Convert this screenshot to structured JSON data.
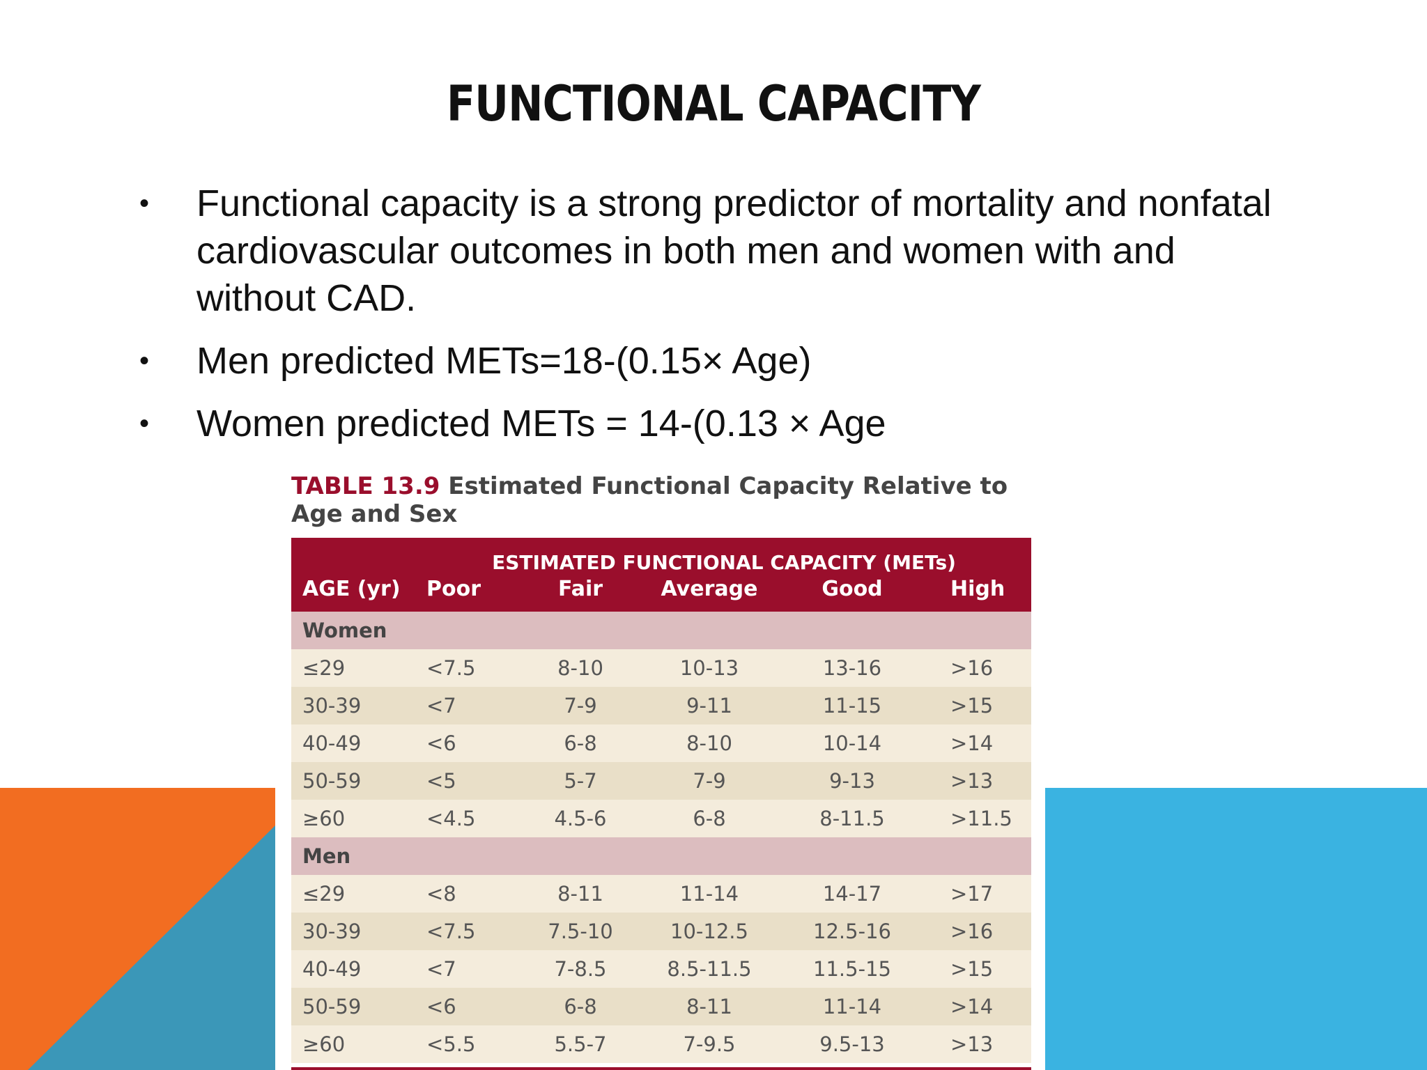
{
  "slide": {
    "title": "FUNCTIONAL CAPACITY",
    "bullets": [
      {
        "marker": "•",
        "text": " Functional capacity is a strong predictor of mortality and nonfatal cardiovascular outcomes in both men and women with and without CAD."
      },
      {
        "marker": "•",
        "text": "Men predicted METs=18-(0.15× Age)"
      },
      {
        "marker": "•",
        "text": "Women predicted METs = 14-(0.13 × Age"
      }
    ],
    "colors": {
      "orange": "#f26d21",
      "teal": "#3b97b8",
      "sky_blue": "#3ab3e1",
      "table_header": "#9a0e2c"
    }
  },
  "table": {
    "caption_number": "TABLE 13.9",
    "caption_text": "Estimated Functional Capacity Relative to Age and Sex",
    "super_header": "ESTIMATED FUNCTIONAL CAPACITY (METs)",
    "columns": [
      "AGE (yr)",
      "Poor",
      "Fair",
      "Average",
      "Good",
      "High"
    ],
    "groups": [
      {
        "label": "Women",
        "rows": [
          [
            "≤29",
            "<7.5",
            "8-10",
            "10-13",
            "13-16",
            ">16"
          ],
          [
            "30-39",
            "<7",
            "7-9",
            "9-11",
            "11-15",
            ">15"
          ],
          [
            "40-49",
            "<6",
            "6-8",
            "8-10",
            "10-14",
            ">14"
          ],
          [
            "50-59",
            "<5",
            "5-7",
            "7-9",
            "9-13",
            ">13"
          ],
          [
            "≥60",
            "<4.5",
            "4.5-6",
            "6-8",
            "8-11.5",
            ">11.5"
          ]
        ]
      },
      {
        "label": "Men",
        "rows": [
          [
            "≤29",
            "<8",
            "8-11",
            "11-14",
            "14-17",
            ">17"
          ],
          [
            "30-39",
            "<7.5",
            "7.5-10",
            "10-12.5",
            "12.5-16",
            ">16"
          ],
          [
            "40-49",
            "<7",
            "7-8.5",
            "8.5-11.5",
            "11.5-15",
            ">15"
          ],
          [
            "50-59",
            "<6",
            "6-8",
            "8-11",
            "11-14",
            ">14"
          ],
          [
            "≥60",
            "<5.5",
            "5.5-7",
            "7-9.5",
            "9.5-13",
            ">13"
          ]
        ]
      }
    ]
  }
}
